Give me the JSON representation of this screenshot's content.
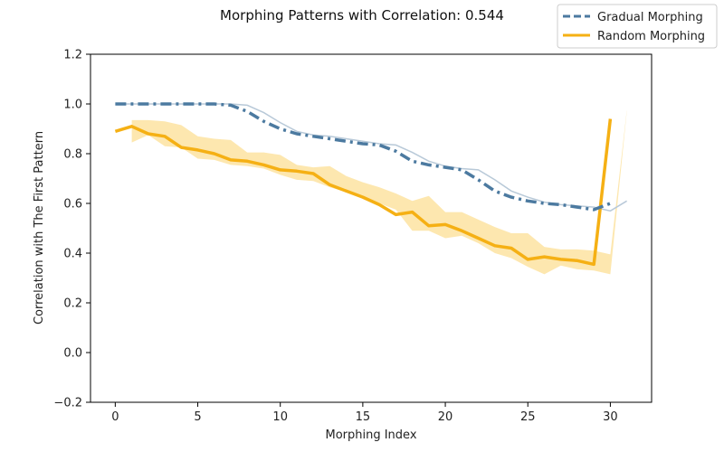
{
  "chart_data": {
    "type": "line",
    "title": "Morphing Patterns with Correlation: 0.544",
    "xlabel": "Morphing Index",
    "ylabel": "Correlation with The First Pattern",
    "xlim": [
      -1.5,
      32.5
    ],
    "ylim": [
      -0.2,
      1.2
    ],
    "xticks": [
      0,
      5,
      10,
      15,
      20,
      25,
      30
    ],
    "yticks": [
      -0.2,
      0.0,
      0.2,
      0.4,
      0.6,
      0.8,
      1.0,
      1.2
    ],
    "xtick_labels": [
      "0",
      "5",
      "10",
      "15",
      "20",
      "25",
      "30"
    ],
    "ytick_labels": [
      "−0.2",
      "0.0",
      "0.2",
      "0.4",
      "0.6",
      "0.8",
      "1.0",
      "1.2"
    ],
    "grid": false,
    "legend_position": "top-right",
    "series": [
      {
        "name": "Gradual Morphing",
        "color": "#4c7aa0",
        "style": "dashdot",
        "x": [
          0,
          1,
          2,
          3,
          4,
          5,
          6,
          7,
          8,
          9,
          10,
          11,
          12,
          13,
          14,
          15,
          16,
          17,
          18,
          19,
          20,
          21,
          22,
          23,
          24,
          25,
          26,
          27,
          28,
          29,
          30
        ],
        "values": [
          1.0,
          1.0,
          1.0,
          1.0,
          1.0,
          1.0,
          1.0,
          0.995,
          0.97,
          0.93,
          0.9,
          0.88,
          0.87,
          0.86,
          0.85,
          0.84,
          0.835,
          0.81,
          0.77,
          0.755,
          0.745,
          0.735,
          0.695,
          0.65,
          0.625,
          0.61,
          0.6,
          0.595,
          0.585,
          0.575,
          0.6
        ]
      },
      {
        "name": "Random Morphing",
        "color": "#f5b014",
        "style": "solid",
        "x": [
          0,
          1,
          2,
          3,
          4,
          5,
          6,
          7,
          8,
          9,
          10,
          11,
          12,
          13,
          14,
          15,
          16,
          17,
          18,
          19,
          20,
          21,
          22,
          23,
          24,
          25,
          26,
          27,
          28,
          29,
          30
        ],
        "values": [
          0.89,
          0.91,
          0.88,
          0.87,
          0.825,
          0.815,
          0.8,
          0.775,
          0.77,
          0.755,
          0.735,
          0.73,
          0.72,
          0.675,
          0.65,
          0.625,
          0.595,
          0.555,
          0.565,
          0.51,
          0.515,
          0.49,
          0.46,
          0.43,
          0.42,
          0.375,
          0.385,
          0.375,
          0.37,
          0.355,
          0.94
        ]
      }
    ],
    "extra_lines": [
      {
        "color": "#b8c9d8",
        "x": [
          0,
          1,
          2,
          3,
          4,
          5,
          6,
          7,
          8,
          9,
          10,
          11,
          12,
          13,
          14,
          15,
          16,
          17,
          18,
          19,
          20,
          21,
          22,
          23,
          24,
          25,
          26,
          27,
          28,
          29,
          30,
          31
        ],
        "values": [
          1.0,
          1.0,
          1.0,
          1.0,
          1.0,
          1.0,
          1.0,
          1.0,
          0.995,
          0.965,
          0.925,
          0.89,
          0.875,
          0.87,
          0.86,
          0.85,
          0.84,
          0.835,
          0.805,
          0.77,
          0.75,
          0.74,
          0.735,
          0.695,
          0.65,
          0.625,
          0.605,
          0.595,
          0.59,
          0.585,
          0.57,
          0.61
        ]
      }
    ],
    "bands": [
      {
        "color": "#fde3a1",
        "x": [
          1,
          2,
          3,
          4,
          5,
          6,
          7,
          8,
          9,
          10,
          11,
          12,
          13,
          14,
          15,
          16,
          17,
          18,
          19,
          20,
          21,
          22,
          23,
          24,
          25,
          26,
          27,
          28,
          29,
          30,
          31
        ],
        "lower": [
          0.845,
          0.875,
          0.83,
          0.825,
          0.78,
          0.775,
          0.755,
          0.75,
          0.74,
          0.715,
          0.695,
          0.69,
          0.665,
          0.645,
          0.625,
          0.6,
          0.575,
          0.49,
          0.49,
          0.46,
          0.47,
          0.44,
          0.4,
          0.38,
          0.345,
          0.315,
          0.35,
          0.335,
          0.33,
          0.315,
          0.97
        ],
        "upper": [
          0.935,
          0.935,
          0.93,
          0.915,
          0.87,
          0.86,
          0.855,
          0.805,
          0.805,
          0.795,
          0.755,
          0.745,
          0.75,
          0.71,
          0.685,
          0.665,
          0.64,
          0.61,
          0.63,
          0.565,
          0.565,
          0.535,
          0.505,
          0.48,
          0.48,
          0.425,
          0.415,
          0.415,
          0.41,
          0.395,
          0.975
        ]
      }
    ]
  }
}
